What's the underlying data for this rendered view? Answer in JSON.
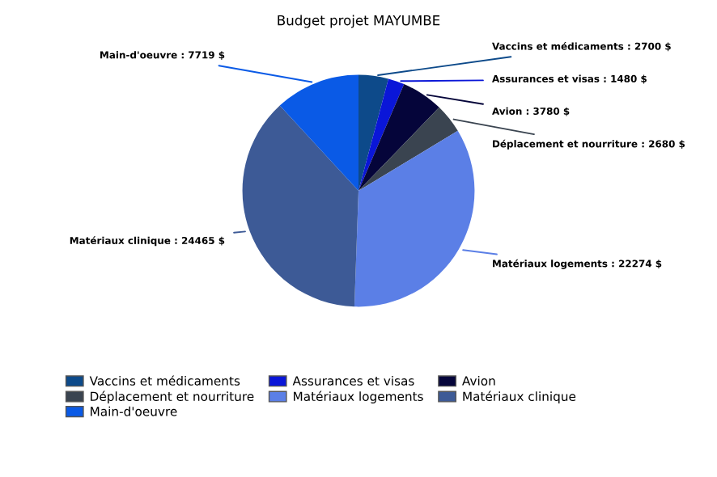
{
  "chart_data": {
    "type": "pie",
    "title": "Budget projet MAYUMBE",
    "categories": [
      "Vaccins et médicaments",
      "Assurances et visas",
      "Avion",
      "Déplacement et nourriture",
      "Matériaux logements",
      "Matériaux clinique",
      "Main-d'oeuvre"
    ],
    "values": [
      2700,
      1480,
      3780,
      2680,
      22274,
      24465,
      7719
    ],
    "value_labels": [
      "Vaccins et médicaments : 2700 $",
      "Assurances et visas : 1480 $",
      "Avion : 3780 $",
      "Déplacement et nourriture : 2680 $",
      "Matériaux logements : 22274 $",
      "Matériaux clinique : 24465 $",
      "Main-d'oeuvre : 7719 $"
    ],
    "colors": [
      "#0d4a8a",
      "#0a16d8",
      "#05053a",
      "#3a4450",
      "#5b7fe6",
      "#3d5a96",
      "#0a5ae6"
    ],
    "legend": "bottom"
  }
}
